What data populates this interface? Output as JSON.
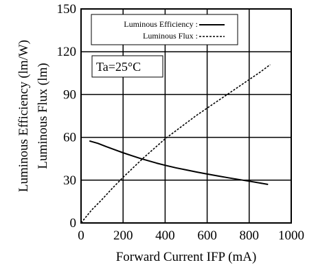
{
  "chart_data": {
    "type": "line",
    "xlabel": "Forward Current  IFP (mA)",
    "ylabel": [
      "Luminous Efficiency (lm/W)",
      "Luminous Flux (lm)"
    ],
    "xlim": [
      0,
      1000
    ],
    "ylim": [
      0,
      150
    ],
    "x_ticks": [
      0,
      200,
      400,
      600,
      800,
      1000
    ],
    "y_ticks": [
      0,
      30,
      60,
      90,
      120,
      150
    ],
    "grid": true,
    "legend_position": "top-left",
    "annotation": "Ta=25°C",
    "series": [
      {
        "name": "Luminous  Efficiency :",
        "line_style": "solid",
        "color": "#000000",
        "points": [
          [
            40,
            57.5
          ],
          [
            80,
            55.8
          ],
          [
            120,
            53.5
          ],
          [
            160,
            51.3
          ],
          [
            200,
            49.2
          ],
          [
            240,
            47.2
          ],
          [
            280,
            45.3
          ],
          [
            320,
            43.6
          ],
          [
            360,
            41.9
          ],
          [
            400,
            40.4
          ],
          [
            450,
            38.7
          ],
          [
            500,
            37.2
          ],
          [
            550,
            35.7
          ],
          [
            600,
            34.3
          ],
          [
            650,
            33.0
          ],
          [
            700,
            31.7
          ],
          [
            750,
            30.5
          ],
          [
            800,
            29.3
          ],
          [
            850,
            28.0
          ],
          [
            890,
            27.0
          ]
        ]
      },
      {
        "name": "Luminous  Flux :",
        "line_style": "dashed",
        "color": "#000000",
        "points": [
          [
            0,
            0
          ],
          [
            50,
            9
          ],
          [
            100,
            16.5
          ],
          [
            150,
            24.5
          ],
          [
            200,
            32
          ],
          [
            250,
            39
          ],
          [
            300,
            46
          ],
          [
            350,
            52.5
          ],
          [
            400,
            59
          ],
          [
            450,
            64.5
          ],
          [
            500,
            70
          ],
          [
            550,
            75.5
          ],
          [
            600,
            80.5
          ],
          [
            650,
            85.5
          ],
          [
            700,
            90.5
          ],
          [
            750,
            95.5
          ],
          [
            800,
            100.5
          ],
          [
            850,
            105.5
          ],
          [
            900,
            111
          ]
        ]
      }
    ]
  }
}
